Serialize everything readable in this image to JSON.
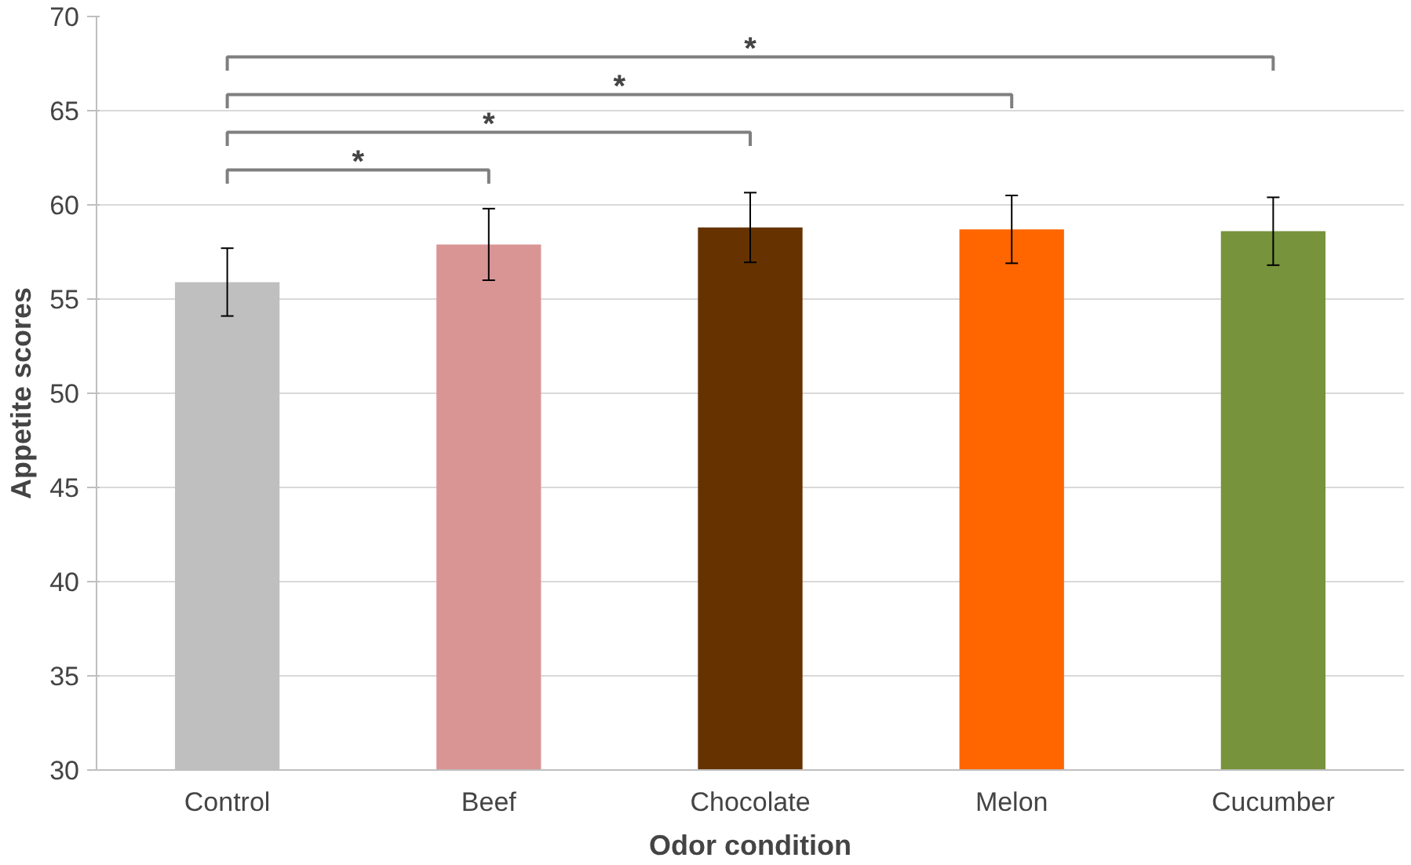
{
  "chart_data": {
    "type": "bar",
    "xlabel": "Odor condition",
    "ylabel": "Appetite scores",
    "categories": [
      "Control",
      "Beef",
      "Chocolate",
      "Melon",
      "Cucumber"
    ],
    "values": [
      55.9,
      57.9,
      58.8,
      58.7,
      58.6
    ],
    "errors": [
      1.8,
      1.9,
      1.85,
      1.8,
      1.8
    ],
    "colors": [
      "#bfbfbf",
      "#d99594",
      "#663300",
      "#ff6600",
      "#77933c"
    ],
    "ylim": [
      30,
      70
    ],
    "yticks": [
      30,
      35,
      40,
      45,
      50,
      55,
      60,
      65,
      70
    ],
    "grid": "y",
    "annotations": [
      "*",
      "*",
      "*",
      "*"
    ]
  }
}
